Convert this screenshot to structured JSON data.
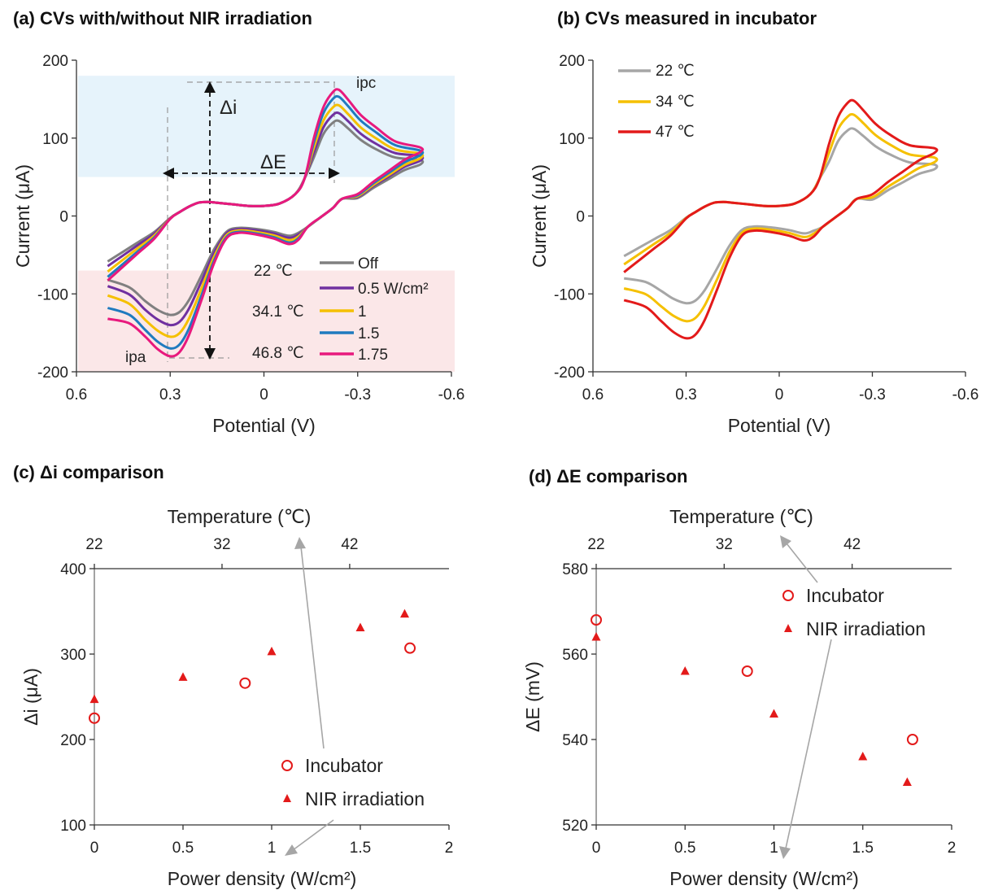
{
  "chart_data": [
    {
      "id": "a",
      "type": "line",
      "title": "(a) CVs with/without NIR irradiation",
      "xlabel": "Potential (V)",
      "ylabel": "Current (μA)",
      "xlim": [
        0.6,
        -0.6
      ],
      "ylim": [
        -200,
        200
      ],
      "xticks": [
        "0.6",
        "0.3",
        "0",
        "-0.3",
        "-0.6"
      ],
      "yticks": [
        "200",
        "100",
        "0",
        "-100",
        "-200"
      ],
      "bands": [
        {
          "from": 50,
          "to": 180,
          "color": "#e6f3fb"
        },
        {
          "from": -200,
          "to": -70,
          "color": "#fbe7e8"
        }
      ],
      "legend_title": [
        "22 ℃",
        "34.1 ℃",
        "46.8 ℃"
      ],
      "series": [
        {
          "name": "Off",
          "color": "#808080",
          "ipc": 122,
          "ipa": -127,
          "cathodic_end": 72,
          "anodic_end": -82,
          "width": 3
        },
        {
          "name": "0.5 W/cm²",
          "color": "#7030a0",
          "ipc": 132,
          "ipa": -140,
          "cathodic_end": 77,
          "anodic_end": -90,
          "width": 3
        },
        {
          "name": "1",
          "color": "#f5c000",
          "ipc": 142,
          "ipa": -155,
          "cathodic_end": 80,
          "anodic_end": -102,
          "width": 3
        },
        {
          "name": "1.5",
          "color": "#1f7bbf",
          "ipc": 153,
          "ipa": -170,
          "cathodic_end": 84,
          "anodic_end": -118,
          "width": 3
        },
        {
          "name": "1.75",
          "color": "#e8197d",
          "ipc": 162,
          "ipa": -180,
          "cathodic_end": 88,
          "anodic_end": -132,
          "width": 3
        }
      ],
      "annotations": {
        "delta_i": "Δi",
        "delta_e": "ΔE",
        "ipc_label": "ipc",
        "ipa_label": "ipa"
      }
    },
    {
      "id": "b",
      "type": "line",
      "title": "(b) CVs measured in incubator",
      "xlabel": "Potential (V)",
      "ylabel": "Current (μA)",
      "xlim": [
        0.6,
        -0.6
      ],
      "ylim": [
        -200,
        200
      ],
      "xticks": [
        "0.6",
        "0.3",
        "0",
        "-0.3",
        "-0.6"
      ],
      "yticks": [
        "200",
        "100",
        "0",
        "-100",
        "-200"
      ],
      "series": [
        {
          "name": "22 ℃",
          "color": "#a6a6a6",
          "ipc": 112,
          "ipa": -112,
          "cathodic_end": 66,
          "anodic_end": -80,
          "width": 3
        },
        {
          "name": "34 ℃",
          "color": "#f5c000",
          "ipc": 130,
          "ipa": -135,
          "cathodic_end": 75,
          "anodic_end": -93,
          "width": 3
        },
        {
          "name": "47 ℃",
          "color": "#e31a1a",
          "ipc": 148,
          "ipa": -157,
          "cathodic_end": 87,
          "anodic_end": -108,
          "width": 3
        }
      ]
    },
    {
      "id": "c",
      "type": "scatter",
      "title": "(c) Δi comparison",
      "xlabel": "Power density (W/cm²)",
      "ylabel": "Δi (μA)",
      "x2label": "Temperature (℃)",
      "xlim": [
        0,
        2
      ],
      "ylim": [
        100,
        400
      ],
      "xticks": [
        "0",
        "0.5",
        "1",
        "1.5",
        "2"
      ],
      "yticks": [
        "400",
        "300",
        "200",
        "100"
      ],
      "x2ticks": [
        "22",
        "32",
        "42"
      ],
      "series": [
        {
          "name": "Incubator",
          "marker": "circle",
          "color": "#e31a1a",
          "x": [
            0,
            0.85,
            1.78
          ],
          "y": [
            225,
            266,
            307
          ]
        },
        {
          "name": "NIR irradiation",
          "marker": "triangle",
          "color": "#e31a1a",
          "x": [
            0,
            0.5,
            1.0,
            1.5,
            1.75
          ],
          "y": [
            247,
            273,
            303,
            331,
            347
          ]
        }
      ]
    },
    {
      "id": "d",
      "type": "scatter",
      "title": "(d) ΔE comparison",
      "xlabel": "Power density (W/cm²)",
      "ylabel": "ΔE (mV)",
      "x2label": "Temperature (℃)",
      "xlim": [
        0,
        2
      ],
      "ylim": [
        520,
        580
      ],
      "xticks": [
        "0",
        "0.5",
        "1",
        "1.5",
        "2"
      ],
      "yticks": [
        "580",
        "560",
        "540",
        "520"
      ],
      "x2ticks": [
        "22",
        "32",
        "42"
      ],
      "series": [
        {
          "name": "Incubator",
          "marker": "circle",
          "color": "#e31a1a",
          "x": [
            0,
            0.85,
            1.78
          ],
          "y": [
            568,
            556,
            540
          ]
        },
        {
          "name": "NIR irradiation",
          "marker": "triangle",
          "color": "#e31a1a",
          "x": [
            0,
            0.5,
            1.0,
            1.5,
            1.75
          ],
          "y": [
            564,
            556,
            546,
            536,
            530
          ]
        }
      ]
    }
  ]
}
